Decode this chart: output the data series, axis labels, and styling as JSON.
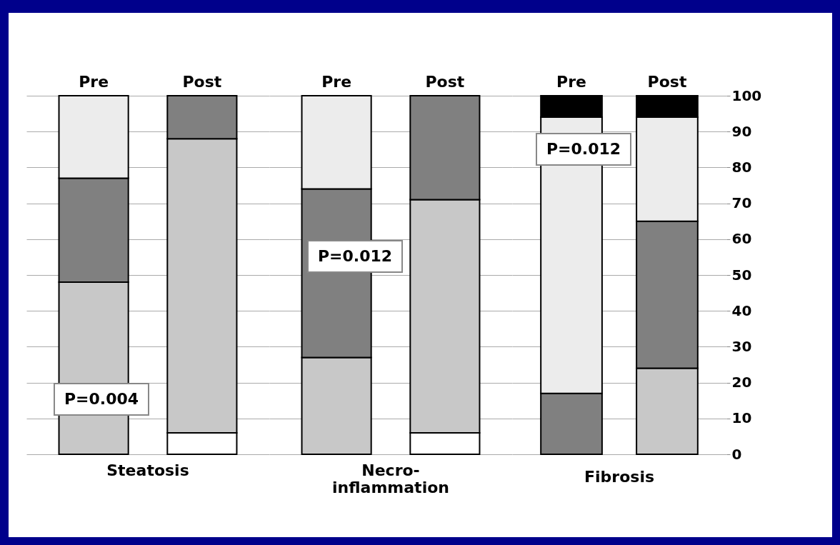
{
  "chart_data": [
    {
      "type": "bar",
      "stacked": true,
      "xlabel": "Steatosis",
      "categories": [
        "Pre",
        "Post"
      ],
      "ylim": [
        0,
        100
      ],
      "yticks": [
        0,
        10,
        20,
        30,
        40,
        50,
        60,
        70,
        80,
        90,
        100
      ],
      "grid": "y",
      "tick_labels": "x",
      "legend": false,
      "annotations": [
        "P=0.004"
      ],
      "series": [
        {
          "color": "#ffffff",
          "values": [
            0,
            6
          ]
        },
        {
          "color": "#c8c8c8",
          "values": [
            48,
            82
          ]
        },
        {
          "color": "#808080",
          "values": [
            29,
            12
          ]
        },
        {
          "color": "#ececec",
          "values": [
            23,
            0
          ]
        },
        {
          "color": "#000000",
          "values": [
            0,
            0
          ]
        }
      ]
    },
    {
      "type": "bar",
      "stacked": true,
      "xlabel": "Necro-\ninflammation",
      "categories": [
        "Pre",
        "Post"
      ],
      "ylim": [
        0,
        100
      ],
      "yticks": [
        0,
        10,
        20,
        30,
        40,
        50,
        60,
        70,
        80,
        90,
        100
      ],
      "grid": "y",
      "tick_labels": "x",
      "legend": false,
      "annotations": [
        "P=0.012"
      ],
      "series": [
        {
          "color": "#ffffff",
          "values": [
            0,
            6
          ]
        },
        {
          "color": "#c8c8c8",
          "values": [
            27,
            65
          ]
        },
        {
          "color": "#808080",
          "values": [
            47,
            29
          ]
        },
        {
          "color": "#ececec",
          "values": [
            26,
            0
          ]
        },
        {
          "color": "#000000",
          "values": [
            0,
            0
          ]
        }
      ]
    },
    {
      "type": "bar",
      "stacked": true,
      "xlabel": "Fibrosis",
      "categories": [
        "Pre",
        "Post"
      ],
      "ylim": [
        0,
        100
      ],
      "yticks": [
        0,
        10,
        20,
        30,
        40,
        50,
        60,
        70,
        80,
        90,
        100
      ],
      "grid": "y",
      "legend": false,
      "annotations": [
        "P=0.012"
      ],
      "series": [
        {
          "color": "#ffffff",
          "values": [
            0,
            0
          ]
        },
        {
          "color": "#c8c8c8",
          "values": [
            0,
            24
          ]
        },
        {
          "color": "#808080",
          "values": [
            17,
            41
          ]
        },
        {
          "color": "#ececec",
          "values": [
            77,
            29
          ]
        },
        {
          "color": "#000000",
          "values": [
            6,
            6
          ]
        }
      ]
    }
  ]
}
